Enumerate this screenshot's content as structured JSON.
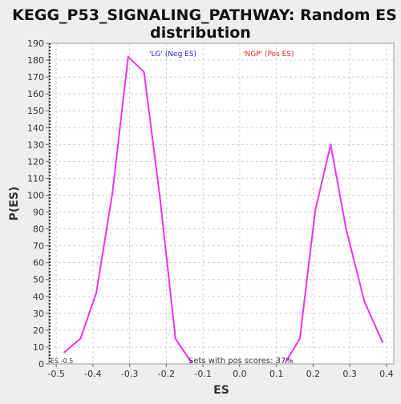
{
  "chart_data": {
    "type": "line",
    "title_lines": [
      "KEGG_P53_SIGNALING_PATHWAY: Random ES",
      "distribution"
    ],
    "xlabel": "ES",
    "ylabel": "P(ES)",
    "xlim": [
      -0.52,
      0.42
    ],
    "ylim": [
      0,
      190
    ],
    "x_ticks": [
      -0.5,
      -0.4,
      -0.3,
      -0.2,
      -0.1,
      0.0,
      0.1,
      0.2,
      0.3,
      0.4
    ],
    "x_tick_labels": [
      "-0.5",
      "-0.4",
      "-0.3",
      "-0.2",
      "-0.1",
      "0.0",
      "0.1",
      "0.2",
      "0.3",
      "0.4"
    ],
    "y_ticks": [
      0,
      10,
      20,
      30,
      40,
      50,
      60,
      70,
      80,
      90,
      100,
      110,
      120,
      130,
      140,
      150,
      160,
      170,
      180,
      190
    ],
    "grid": true,
    "series": [
      {
        "color": "#ee33ee",
        "x": [
          -0.477,
          -0.434,
          -0.391,
          -0.347,
          -0.304,
          -0.261,
          -0.218,
          -0.175,
          -0.132
        ],
        "y": [
          7,
          15,
          42,
          101,
          182,
          173,
          100,
          15,
          1
        ]
      },
      {
        "color": "#ee33ee",
        "x": [
          0.125,
          0.164,
          0.206,
          0.248,
          0.29,
          0.34,
          0.389
        ],
        "y": [
          1,
          15,
          91,
          130,
          80,
          37,
          13
        ]
      }
    ],
    "annotations": {
      "neg_label": "'LG' (Neg ES)",
      "neg_color": "#2222ee",
      "pos_label": "'NGP' (Pos ES)",
      "pos_color": "#ee2222",
      "pos_scores_text": "Sets with pos scores: 37%",
      "es_marker_text": "ES -0.5"
    }
  }
}
